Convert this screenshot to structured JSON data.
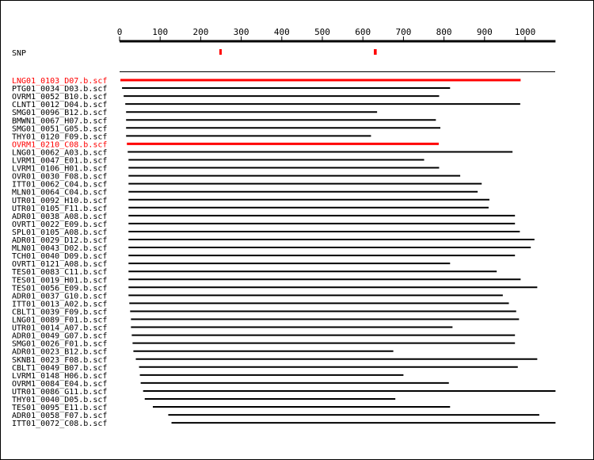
{
  "track_label": "SNP",
  "colors": {
    "highlight": "#ff0000",
    "normal": "#000000",
    "snp": "#ff0000"
  },
  "chart_data": {
    "type": "alignment",
    "axis": {
      "min": 0,
      "max": 1075,
      "ticks": [
        0,
        100,
        200,
        300,
        400,
        500,
        600,
        700,
        800,
        900,
        1000
      ]
    },
    "snps": [
      {
        "start": 246,
        "end": 251
      },
      {
        "start": 627,
        "end": 634
      }
    ],
    "reads": [
      {
        "name": "LNG01_0103_D07.b.scf",
        "start": 2,
        "end": 989,
        "highlight": true
      },
      {
        "name": "PTG01_0034_D03.b.scf",
        "start": 6,
        "end": 815,
        "highlight": false
      },
      {
        "name": "OVRM1_0052_B10.b.scf",
        "start": 10,
        "end": 788,
        "highlight": false
      },
      {
        "name": "CLNT1_0012_D04.b.scf",
        "start": 14,
        "end": 988,
        "highlight": false
      },
      {
        "name": "SMG01_0096_B12.b.scf",
        "start": 16,
        "end": 635,
        "highlight": false
      },
      {
        "name": "BMWN1_0067_H07.b.scf",
        "start": 16,
        "end": 780,
        "highlight": false
      },
      {
        "name": "SMG01_0051_G05.b.scf",
        "start": 16,
        "end": 791,
        "highlight": false
      },
      {
        "name": "THY01_0120_F09.b.scf",
        "start": 16,
        "end": 620,
        "highlight": false
      },
      {
        "name": "OVRM1_0210_C08.b.scf",
        "start": 18,
        "end": 787,
        "highlight": true
      },
      {
        "name": "LNG01_0062_A03.b.scf",
        "start": 20,
        "end": 969,
        "highlight": false
      },
      {
        "name": "LVRM1_0047_E01.b.scf",
        "start": 22,
        "end": 751,
        "highlight": false
      },
      {
        "name": "LVRM1_0106_H01.b.scf",
        "start": 22,
        "end": 788,
        "highlight": false
      },
      {
        "name": "OVR01_0030_F08.b.scf",
        "start": 22,
        "end": 840,
        "highlight": false
      },
      {
        "name": "ITT01_0062_C04.b.scf",
        "start": 22,
        "end": 893,
        "highlight": false
      },
      {
        "name": "MLN01_0064_C04.b.scf",
        "start": 22,
        "end": 883,
        "highlight": false
      },
      {
        "name": "UTR01_0092_H10.b.scf",
        "start": 22,
        "end": 912,
        "highlight": false
      },
      {
        "name": "UTR01_0105_F11.b.scf",
        "start": 22,
        "end": 910,
        "highlight": false
      },
      {
        "name": "ADR01_0038_A08.b.scf",
        "start": 22,
        "end": 975,
        "highlight": false
      },
      {
        "name": "OVRT1_0022_E09.b.scf",
        "start": 22,
        "end": 975,
        "highlight": false
      },
      {
        "name": "SPL01_0105_A08.b.scf",
        "start": 22,
        "end": 987,
        "highlight": false
      },
      {
        "name": "ADR01_0029_D12.b.scf",
        "start": 22,
        "end": 1023,
        "highlight": false
      },
      {
        "name": "MLN01_0043_D02.b.scf",
        "start": 22,
        "end": 1014,
        "highlight": false
      },
      {
        "name": "TCH01_0040_D09.b.scf",
        "start": 22,
        "end": 975,
        "highlight": false
      },
      {
        "name": "OVRT1_0121_A08.b.scf",
        "start": 22,
        "end": 815,
        "highlight": false
      },
      {
        "name": "TES01_0083_C11.b.scf",
        "start": 22,
        "end": 930,
        "highlight": false
      },
      {
        "name": "TES01_0019_H01.b.scf",
        "start": 22,
        "end": 989,
        "highlight": false
      },
      {
        "name": "TES01_0056_E09.b.scf",
        "start": 22,
        "end": 1030,
        "highlight": false
      },
      {
        "name": "ADR01_0037_G10.b.scf",
        "start": 22,
        "end": 945,
        "highlight": false
      },
      {
        "name": "ITT01_0013_A02.b.scf",
        "start": 24,
        "end": 960,
        "highlight": false
      },
      {
        "name": "CBLT1_0039_F09.b.scf",
        "start": 26,
        "end": 978,
        "highlight": false
      },
      {
        "name": "LNG01_0089_F01.b.scf",
        "start": 28,
        "end": 985,
        "highlight": false
      },
      {
        "name": "UTR01_0014_A07.b.scf",
        "start": 28,
        "end": 821,
        "highlight": false
      },
      {
        "name": "ADR01_0049_G07.b.scf",
        "start": 30,
        "end": 975,
        "highlight": false
      },
      {
        "name": "SMG01_0026_F01.b.scf",
        "start": 32,
        "end": 975,
        "highlight": false
      },
      {
        "name": "ADR01_0023_B12.b.scf",
        "start": 34,
        "end": 675,
        "highlight": false
      },
      {
        "name": "SKNB1_0023_F08.b.scf",
        "start": 40,
        "end": 1030,
        "highlight": false
      },
      {
        "name": "CBLT1_0049_B07.b.scf",
        "start": 48,
        "end": 982,
        "highlight": false
      },
      {
        "name": "LVRM1_0148_H06.b.scf",
        "start": 50,
        "end": 700,
        "highlight": false
      },
      {
        "name": "OVRM1_0084_E04.b.scf",
        "start": 52,
        "end": 812,
        "highlight": false
      },
      {
        "name": "UTR01_0086_G11.b.scf",
        "start": 58,
        "end": 1075,
        "highlight": false
      },
      {
        "name": "THY01_0040_D05.b.scf",
        "start": 62,
        "end": 680,
        "highlight": false
      },
      {
        "name": "TES01_0095_E11.b.scf",
        "start": 82,
        "end": 815,
        "highlight": false
      },
      {
        "name": "ADR01_0058_F07.b.scf",
        "start": 120,
        "end": 1035,
        "highlight": false
      },
      {
        "name": "ITT01_0072_C08.b.scf",
        "start": 128,
        "end": 1075,
        "highlight": false
      }
    ]
  }
}
